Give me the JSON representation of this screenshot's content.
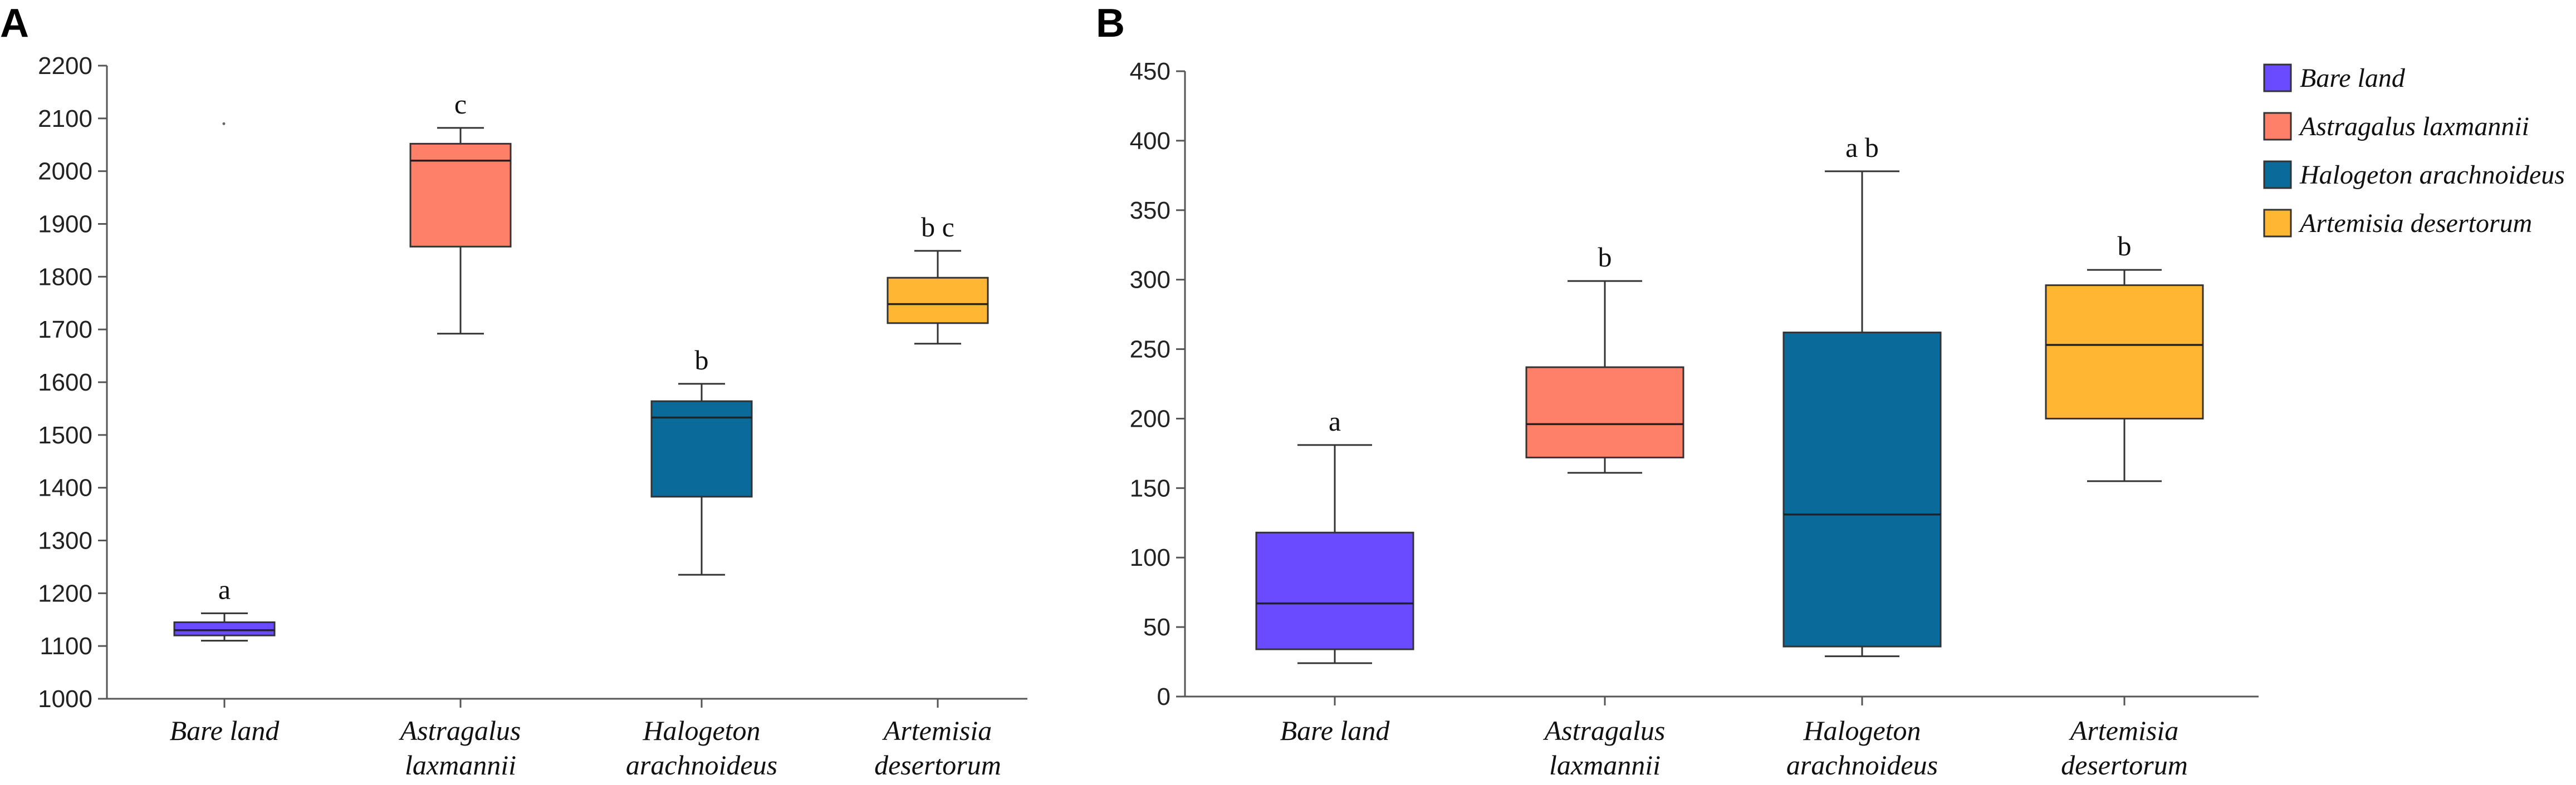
{
  "panel_labels": {
    "a": "A",
    "b": "B"
  },
  "series_names": [
    "Bare land",
    "Astragalus laxmannii",
    "Halogeton arachnoideus",
    "Artemisia desertorum"
  ],
  "colors": [
    "#6a4bff",
    "#ff8069",
    "#0a6a9a",
    "#ffb733"
  ],
  "chart_data": [
    {
      "type": "box",
      "panel": "A",
      "title": "",
      "xlabel": "",
      "ylabel": "",
      "ylim": [
        1000,
        2200
      ],
      "yticks": [
        1000,
        1100,
        1200,
        1300,
        1400,
        1500,
        1600,
        1700,
        1800,
        1900,
        2000,
        2100,
        2200
      ],
      "categories": [
        {
          "line1": "Bare land",
          "line2": ""
        },
        {
          "line1": "Astragalus",
          "line2": "laxmannii"
        },
        {
          "line1": "Halogeton",
          "line2": "arachnoideus"
        },
        {
          "line1": "Artemisia",
          "line2": "desertorum"
        }
      ],
      "boxes": [
        {
          "min": 1110,
          "q1": 1120,
          "median": 1130,
          "q3": 1145,
          "max": 1162,
          "letter": "a",
          "outliers": [
            2090
          ]
        },
        {
          "min": 1692,
          "q1": 1857,
          "median": 2020,
          "q3": 2052,
          "max": 2082,
          "letter": "c",
          "outliers": []
        },
        {
          "min": 1235,
          "q1": 1383,
          "median": 1533,
          "q3": 1564,
          "max": 1597,
          "letter": "b",
          "outliers": []
        },
        {
          "min": 1673,
          "q1": 1712,
          "median": 1748,
          "q3": 1798,
          "max": 1849,
          "letter": "b c",
          "outliers": []
        }
      ]
    },
    {
      "type": "box",
      "panel": "B",
      "title": "",
      "xlabel": "",
      "ylabel": "",
      "ylim": [
        0,
        450
      ],
      "yticks": [
        0,
        50,
        100,
        150,
        200,
        250,
        300,
        350,
        400,
        450
      ],
      "categories": [
        {
          "line1": "Bare land",
          "line2": ""
        },
        {
          "line1": "Astragalus",
          "line2": "laxmannii"
        },
        {
          "line1": "Halogeton",
          "line2": "arachnoideus"
        },
        {
          "line1": "Artemisia",
          "line2": "desertorum"
        }
      ],
      "boxes": [
        {
          "min": 24,
          "q1": 34,
          "median": 67,
          "q3": 118,
          "max": 181,
          "letter": "a",
          "outliers": []
        },
        {
          "min": 161,
          "q1": 172,
          "median": 196,
          "q3": 237,
          "max": 299,
          "letter": "b",
          "outliers": []
        },
        {
          "min": 29,
          "q1": 36,
          "median": 131,
          "q3": 262,
          "max": 378,
          "letter": "a b",
          "outliers": []
        },
        {
          "min": 155,
          "q1": 200,
          "median": 253,
          "q3": 296,
          "max": 307,
          "letter": "b",
          "outliers": []
        }
      ],
      "legend": {
        "position": "top-right",
        "entries": [
          "Bare land",
          "Astragalus laxmannii",
          "Halogeton arachnoideus",
          "Artemisia desertorum"
        ]
      }
    }
  ]
}
